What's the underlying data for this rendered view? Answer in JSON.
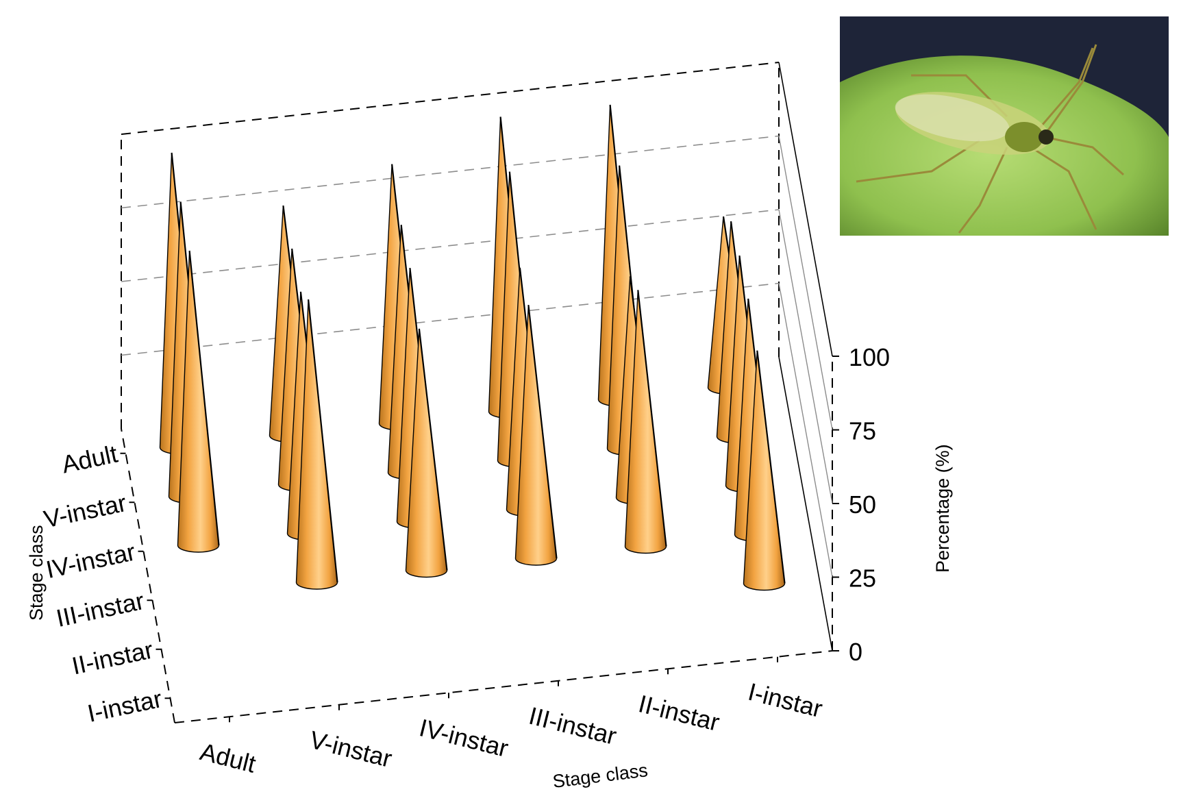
{
  "chart_data": {
    "type": "3d-cone-bar",
    "title": "",
    "x_axis": {
      "label": "Stage class",
      "categories": [
        "Adult",
        "V-instar",
        "IV-instar",
        "III-instar",
        "II-instar",
        "I-instar"
      ]
    },
    "y_axis": {
      "label": "Stage class",
      "categories": [
        "I-instar",
        "II-instar",
        "III-instar",
        "IV-instar",
        "V-instar",
        "Adult"
      ]
    },
    "z_axis": {
      "label": "Percentage (%)",
      "ticks": [
        0,
        25,
        50,
        75,
        100
      ],
      "zlim": [
        0,
        100
      ]
    },
    "grid": true,
    "cones": [
      {
        "x": "Adult",
        "y": "Adult",
        "value": 100
      },
      {
        "x": "Adult",
        "y": "V-instar",
        "value": 100
      },
      {
        "x": "V-instar",
        "y": "Adult",
        "value": 78
      },
      {
        "x": "Adult",
        "y": "IV-instar",
        "value": 100
      },
      {
        "x": "V-instar",
        "y": "V-instar",
        "value": 80
      },
      {
        "x": "IV-instar",
        "y": "Adult",
        "value": 88
      },
      {
        "x": "V-instar",
        "y": "IV-instar",
        "value": 82
      },
      {
        "x": "IV-instar",
        "y": "V-instar",
        "value": 84
      },
      {
        "x": "III-instar",
        "y": "Adult",
        "value": 100
      },
      {
        "x": "V-instar",
        "y": "III-instar",
        "value": 96
      },
      {
        "x": "IV-instar",
        "y": "IV-instar",
        "value": 86
      },
      {
        "x": "III-instar",
        "y": "V-instar",
        "value": 98
      },
      {
        "x": "II-instar",
        "y": "Adult",
        "value": 100
      },
      {
        "x": "IV-instar",
        "y": "III-instar",
        "value": 82
      },
      {
        "x": "III-instar",
        "y": "IV-instar",
        "value": 82
      },
      {
        "x": "II-instar",
        "y": "V-instar",
        "value": 96
      },
      {
        "x": "I-instar",
        "y": "Adult",
        "value": 58
      },
      {
        "x": "III-instar",
        "y": "III-instar",
        "value": 86
      },
      {
        "x": "II-instar",
        "y": "IV-instar",
        "value": 75
      },
      {
        "x": "I-instar",
        "y": "V-instar",
        "value": 73
      },
      {
        "x": "II-instar",
        "y": "III-instar",
        "value": 87
      },
      {
        "x": "I-instar",
        "y": "IV-instar",
        "value": 78
      },
      {
        "x": "I-instar",
        "y": "III-instar",
        "value": 80
      },
      {
        "x": "I-instar",
        "y": "II-instar",
        "value": 79
      }
    ],
    "colors": {
      "cone_light": "#ffd08a",
      "cone_mid": "#f2a341",
      "cone_dark": "#b9741e",
      "gridline": "#8c8c8c"
    }
  },
  "inset_photo": {
    "subject": "mirid-bug-on-leaf",
    "colors": {
      "leaf": "#8fc04e",
      "background": "#1e2438",
      "insect": "#c9d27a"
    }
  }
}
